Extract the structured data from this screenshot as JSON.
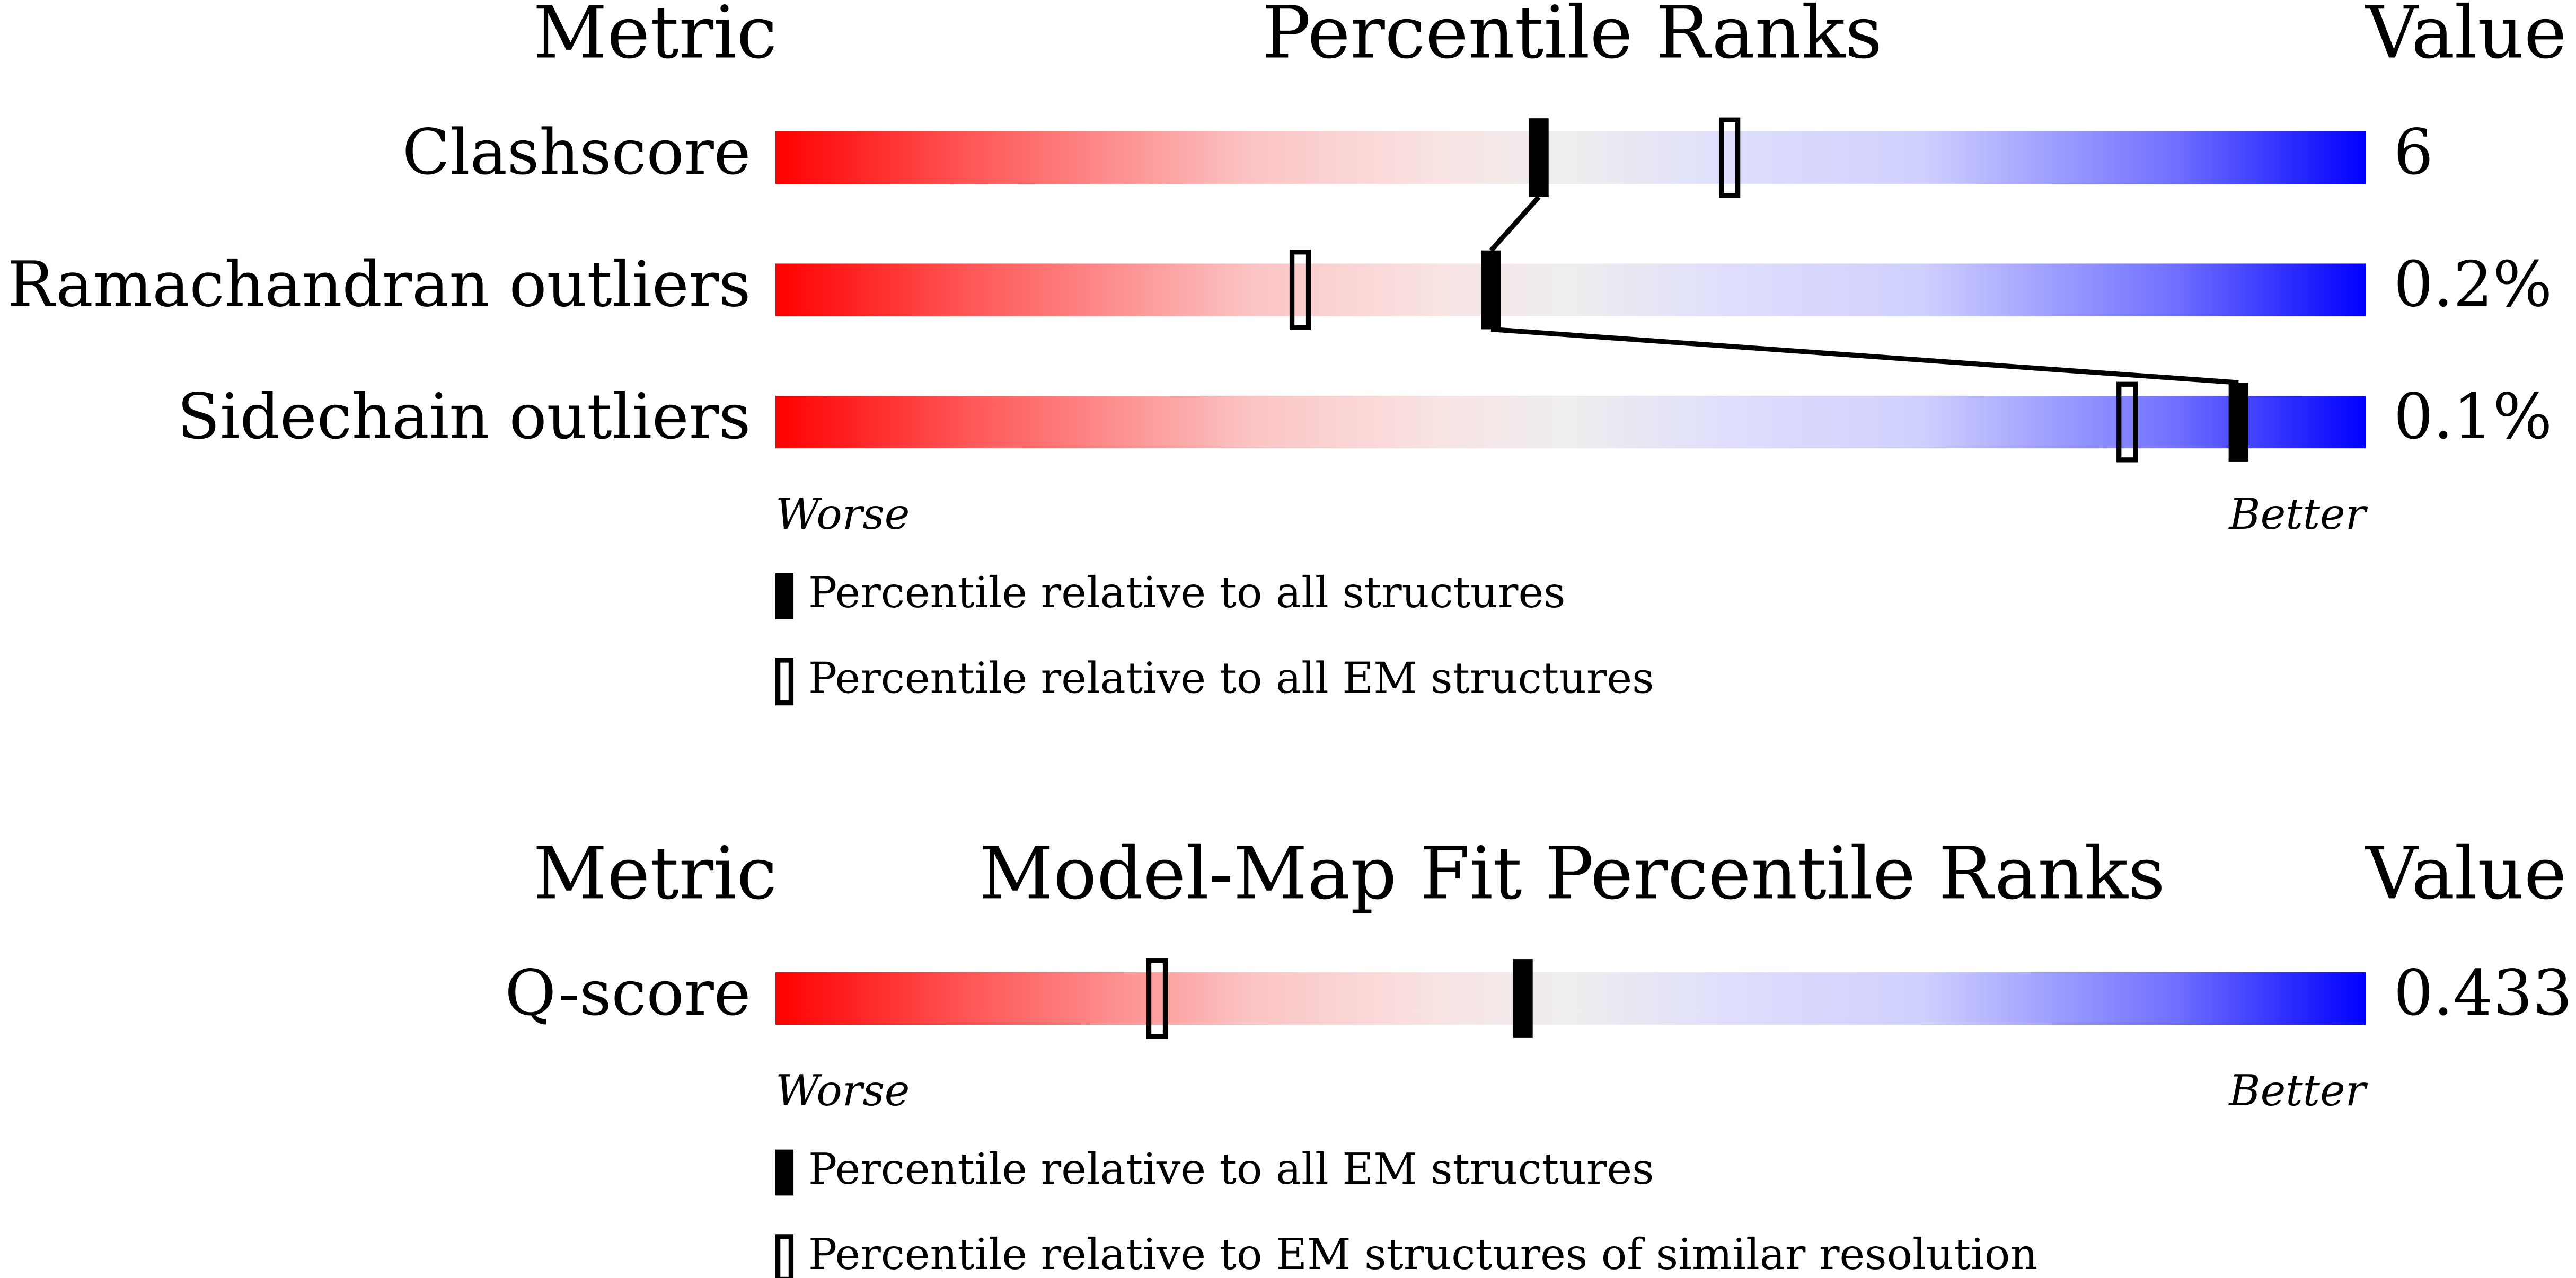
{
  "panels": [
    {
      "headers": {
        "metric": "Metric",
        "title": "Percentile Ranks",
        "value": "Value"
      },
      "rows": [
        {
          "label": "Clashscore",
          "value": "6",
          "percentiles": [
            48,
            60
          ]
        },
        {
          "label": "Ramachandran outliers",
          "value": "0.2%",
          "percentiles": [
            45,
            33
          ]
        },
        {
          "label": "Sidechain outliers",
          "value": "0.1%",
          "percentiles": [
            92,
            85
          ]
        }
      ],
      "worse": "Worse",
      "better": "Better",
      "legend": [
        "Percentile relative to all structures",
        "Percentile relative to all EM structures"
      ]
    },
    {
      "headers": {
        "metric": "Metric",
        "title": "Model-Map Fit Percentile Ranks",
        "value": "Value"
      },
      "rows": [
        {
          "label": "Q-score",
          "value": "0.433",
          "percentiles": [
            47,
            24
          ]
        }
      ],
      "worse": "Worse",
      "better": "Better",
      "legend": [
        "Percentile relative to all EM structures",
        "Percentile relative to EM structures of similar resolution"
      ]
    }
  ]
}
